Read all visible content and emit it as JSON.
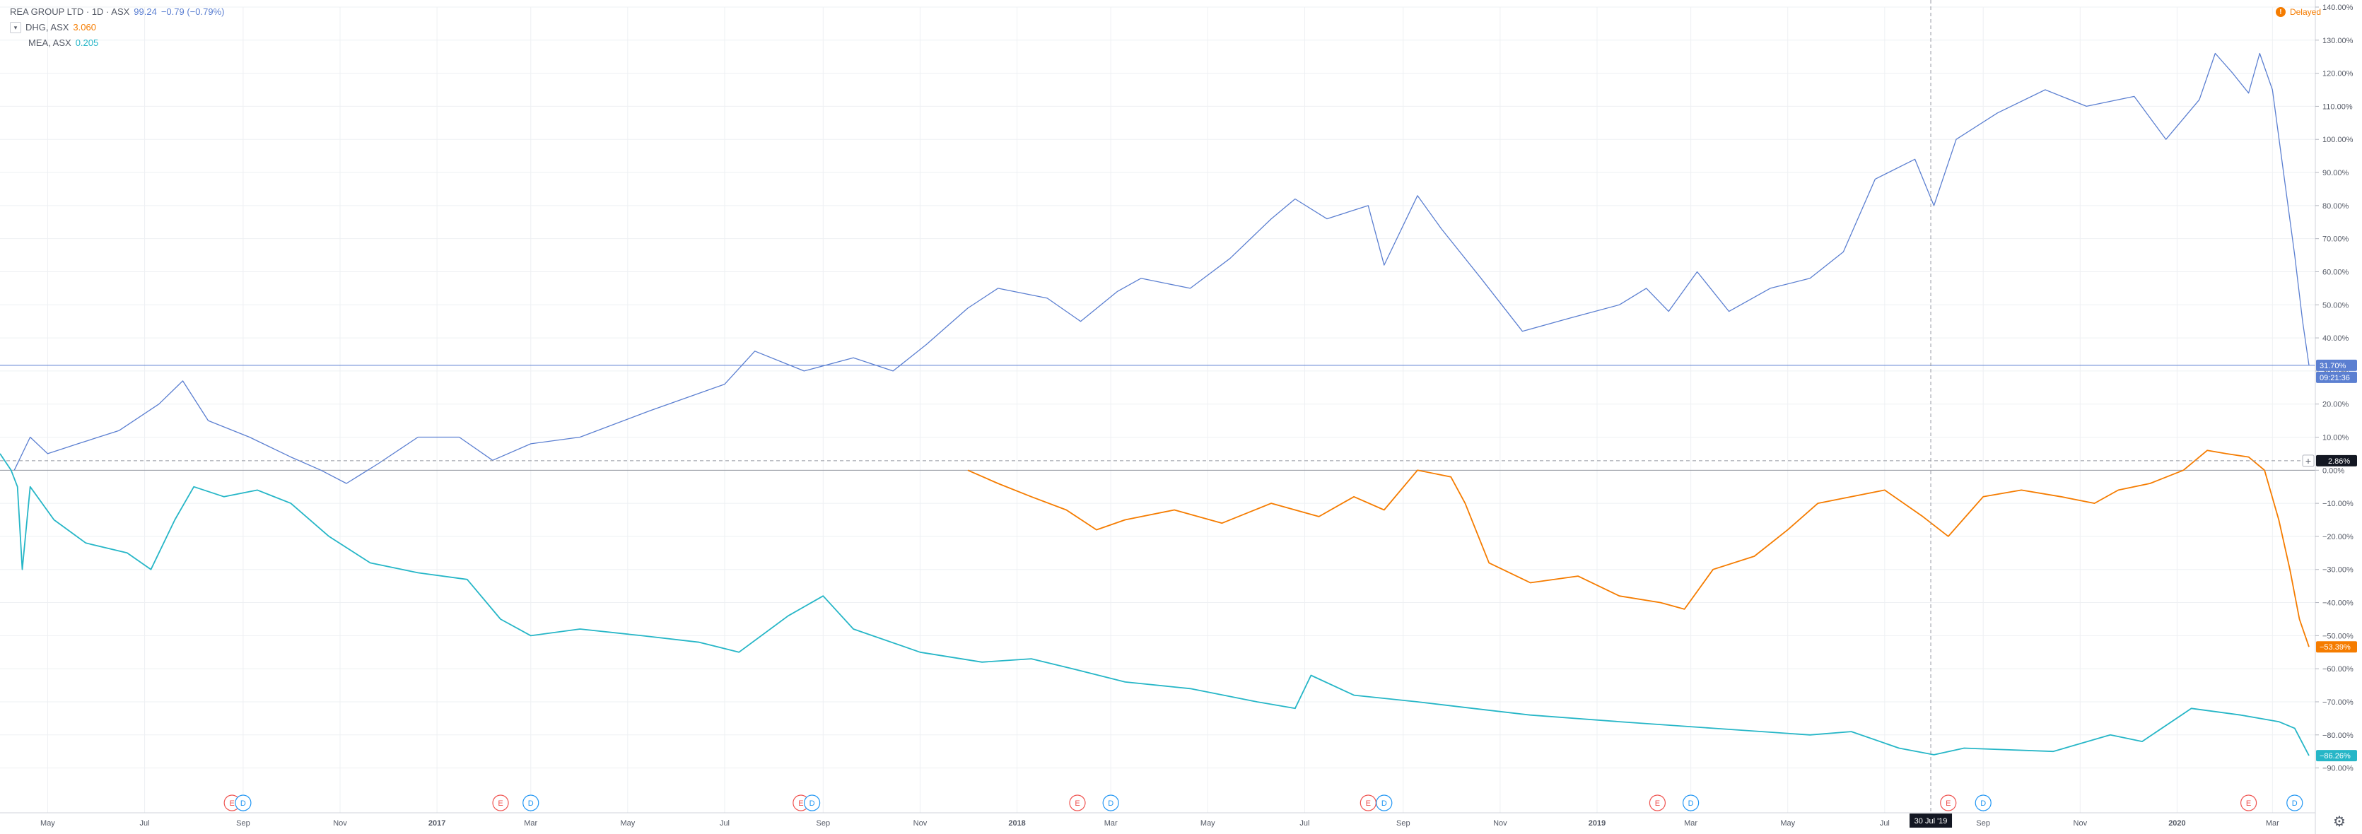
{
  "legend": {
    "main": {
      "name": "REA GROUP LTD · 1D · ASX",
      "value": "99.24",
      "change": "−0.79 (−0.79%)"
    },
    "series": [
      {
        "name": "DHG, ASX",
        "value": "3.060"
      },
      {
        "name": "MEA, ASX",
        "value": "0.205"
      }
    ],
    "collapse_icon": "chevron-down-icon"
  },
  "status": {
    "label": "Delayed",
    "icon": "info-icon"
  },
  "crosshair": {
    "date_label": "30 Jul '19",
    "price_label": "2.86%",
    "time_label": "09:21:36"
  },
  "settings_icon": "gear-icon",
  "colors": {
    "rea": "#5b7fd1",
    "dhg": "#f57c00",
    "mea": "#26b6c7",
    "crosshair": "#131722"
  },
  "chart_data": {
    "type": "line",
    "y_scale": "percent",
    "ylim": [
      -95,
      140
    ],
    "y_ticks": [
      "140.00%",
      "130.00%",
      "120.00%",
      "110.00%",
      "100.00%",
      "90.00%",
      "80.00%",
      "70.00%",
      "60.00%",
      "50.00%",
      "40.00%",
      "30.00%",
      "20.00%",
      "10.00%",
      "0.00%",
      "−10.00%",
      "−20.00%",
      "−30.00%",
      "−40.00%",
      "−50.00%",
      "−60.00%",
      "−70.00%",
      "−80.00%",
      "−90.00%"
    ],
    "x_ticks": [
      "May",
      "Jul",
      "Sep",
      "Nov",
      "2017",
      "Mar",
      "May",
      "Jul",
      "Sep",
      "Nov",
      "2018",
      "Mar",
      "May",
      "Jul",
      "Sep",
      "Nov",
      "2019",
      "Mar",
      "May",
      "Jul",
      "Sep",
      "Nov",
      "2020",
      "Mar"
    ],
    "last_values": {
      "rea": "31.70%",
      "dhg": "−53.39%",
      "mea": "−86.26%"
    },
    "event_markers": [
      {
        "type": "E",
        "x": "2016-08-25"
      },
      {
        "type": "D",
        "x": "2016-09-01"
      },
      {
        "type": "E",
        "x": "2017-02-10"
      },
      {
        "type": "D",
        "x": "2017-03-01"
      },
      {
        "type": "E",
        "x": "2017-08-18"
      },
      {
        "type": "D",
        "x": "2017-08-25"
      },
      {
        "type": "E",
        "x": "2018-02-08"
      },
      {
        "type": "D",
        "x": "2018-03-01"
      },
      {
        "type": "E",
        "x": "2018-08-10"
      },
      {
        "type": "D",
        "x": "2018-08-20"
      },
      {
        "type": "E",
        "x": "2019-02-08"
      },
      {
        "type": "D",
        "x": "2019-03-01"
      },
      {
        "type": "E",
        "x": "2019-08-10"
      },
      {
        "type": "D",
        "x": "2019-09-01"
      },
      {
        "type": "E",
        "x": "2020-02-15"
      },
      {
        "type": "D",
        "x": "2020-03-15"
      }
    ],
    "series": [
      {
        "name": "REA GROUP LTD",
        "key": "rea",
        "x": [
          "2016-04-10",
          "2016-04-20",
          "2016-05-01",
          "2016-05-20",
          "2016-06-15",
          "2016-07-10",
          "2016-07-25",
          "2016-08-10",
          "2016-09-05",
          "2016-10-01",
          "2016-10-20",
          "2016-11-05",
          "2016-11-25",
          "2016-12-20",
          "2017-01-15",
          "2017-02-05",
          "2017-03-01",
          "2017-04-01",
          "2017-05-15",
          "2017-07-01",
          "2017-07-20",
          "2017-08-20",
          "2017-09-20",
          "2017-10-15",
          "2017-11-05",
          "2017-12-01",
          "2017-12-20",
          "2018-01-20",
          "2018-02-10",
          "2018-03-05",
          "2018-03-20",
          "2018-04-20",
          "2018-05-15",
          "2018-06-10",
          "2018-06-25",
          "2018-07-15",
          "2018-08-10",
          "2018-08-20",
          "2018-09-10",
          "2018-09-25",
          "2018-10-20",
          "2018-11-15",
          "2018-12-15",
          "2019-01-15",
          "2019-02-01",
          "2019-02-15",
          "2019-03-05",
          "2019-03-25",
          "2019-04-20",
          "2019-05-15",
          "2019-06-05",
          "2019-06-25",
          "2019-07-20",
          "2019-08-01",
          "2019-08-15",
          "2019-09-10",
          "2019-10-10",
          "2019-11-05",
          "2019-12-05",
          "2019-12-25",
          "2020-01-15",
          "2020-01-25",
          "2020-02-05",
          "2020-02-15",
          "2020-02-22",
          "2020-03-01",
          "2020-03-08",
          "2020-03-15",
          "2020-03-20",
          "2020-03-24"
        ],
        "y": [
          0,
          10,
          5,
          8,
          12,
          20,
          27,
          15,
          10,
          4,
          0,
          -4,
          2,
          10,
          10,
          3,
          8,
          10,
          18,
          26,
          36,
          30,
          34,
          30,
          38,
          49,
          55,
          52,
          45,
          54,
          58,
          55,
          64,
          76,
          82,
          76,
          80,
          62,
          83,
          73,
          58,
          42,
          46,
          50,
          55,
          48,
          60,
          48,
          55,
          58,
          66,
          88,
          94,
          80,
          100,
          108,
          115,
          110,
          113,
          100,
          112,
          126,
          120,
          114,
          126,
          115,
          90,
          65,
          45,
          31.7
        ]
      },
      {
        "name": "DHG, ASX",
        "key": "dhg",
        "x": [
          "2017-12-01",
          "2017-12-20",
          "2018-01-10",
          "2018-02-01",
          "2018-02-20",
          "2018-03-10",
          "2018-04-10",
          "2018-05-10",
          "2018-06-10",
          "2018-07-10",
          "2018-08-01",
          "2018-08-20",
          "2018-09-10",
          "2018-10-01",
          "2018-10-10",
          "2018-10-25",
          "2018-11-20",
          "2018-12-20",
          "2019-01-15",
          "2019-02-10",
          "2019-02-25",
          "2019-03-15",
          "2019-04-10",
          "2019-05-01",
          "2019-05-20",
          "2019-06-10",
          "2019-07-01",
          "2019-07-25",
          "2019-08-10",
          "2019-09-01",
          "2019-09-25",
          "2019-10-20",
          "2019-11-10",
          "2019-11-25",
          "2019-12-15",
          "2020-01-05",
          "2020-01-20",
          "2020-02-01",
          "2020-02-15",
          "2020-02-25",
          "2020-03-05",
          "2020-03-12",
          "2020-03-18",
          "2020-03-24"
        ],
        "y": [
          0,
          -4,
          -8,
          -12,
          -18,
          -15,
          -12,
          -16,
          -10,
          -14,
          -8,
          -12,
          0,
          -2,
          -10,
          -28,
          -34,
          -32,
          -38,
          -40,
          -42,
          -30,
          -26,
          -18,
          -10,
          -8,
          -6,
          -14,
          -20,
          -8,
          -6,
          -8,
          -10,
          -6,
          -4,
          0,
          6,
          5,
          4,
          0,
          -15,
          -30,
          -45,
          -53.39
        ]
      },
      {
        "name": "MEA, ASX",
        "key": "mea",
        "x": [
          "2016-04-01",
          "2016-04-08",
          "2016-04-12",
          "2016-04-15",
          "2016-04-20",
          "2016-05-05",
          "2016-05-25",
          "2016-06-20",
          "2016-07-05",
          "2016-07-20",
          "2016-08-01",
          "2016-08-20",
          "2016-09-10",
          "2016-10-01",
          "2016-10-25",
          "2016-11-20",
          "2016-12-20",
          "2017-01-20",
          "2017-02-10",
          "2017-03-01",
          "2017-04-01",
          "2017-05-10",
          "2017-06-15",
          "2017-07-10",
          "2017-08-10",
          "2017-09-01",
          "2017-09-20",
          "2017-11-01",
          "2017-12-10",
          "2018-01-10",
          "2018-02-05",
          "2018-03-10",
          "2018-04-20",
          "2018-06-01",
          "2018-06-25",
          "2018-07-05",
          "2018-08-01",
          "2018-09-10",
          "2018-10-15",
          "2018-11-20",
          "2019-01-15",
          "2019-03-15",
          "2019-05-15",
          "2019-06-10",
          "2019-07-10",
          "2019-08-01",
          "2019-08-20",
          "2019-10-15",
          "2019-11-20",
          "2019-12-10",
          "2020-01-10",
          "2020-02-10",
          "2020-03-05",
          "2020-03-15",
          "2020-03-24"
        ],
        "y": [
          5,
          0,
          -5,
          -30,
          -5,
          -15,
          -22,
          -25,
          -30,
          -15,
          -5,
          -8,
          -6,
          -10,
          -20,
          -28,
          -31,
          -33,
          -45,
          -50,
          -48,
          -50,
          -52,
          -55,
          -44,
          -38,
          -48,
          -55,
          -58,
          -57,
          -60,
          -64,
          -66,
          -70,
          -72,
          -62,
          -68,
          -70,
          -72,
          -74,
          -76,
          -78,
          -80,
          -79,
          -84,
          -86,
          -84,
          -85,
          -80,
          -82,
          -72,
          -74,
          -76,
          -78,
          -86.26
        ]
      }
    ]
  }
}
